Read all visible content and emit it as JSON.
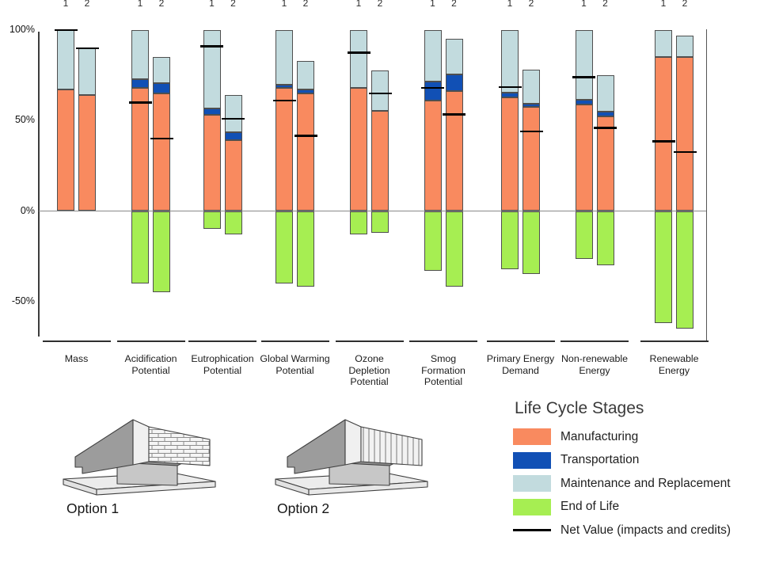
{
  "chart_data": {
    "type": "bar",
    "stacked": true,
    "unit": "%",
    "grid": false,
    "legend_position": "bottom-right",
    "ylim": [
      -70,
      100
    ],
    "y_ticks": [
      {
        "label": "100%",
        "value": 100
      },
      {
        "label": "50%",
        "value": 50
      },
      {
        "label": "0%",
        "value": 0
      },
      {
        "label": "-50%",
        "value": -50
      }
    ],
    "bar_option_labels": [
      "1",
      "2"
    ],
    "stages": [
      "Manufacturing",
      "Transportation",
      "Maintenance and Replacement",
      "End of Life"
    ],
    "net_label": "Net Value (impacts and credits)",
    "groups": [
      {
        "category": "Mass",
        "label_lines": [
          "Mass"
        ],
        "bars": [
          {
            "option": "1",
            "manufacturing_top": 67,
            "transportation_top": 67,
            "maintenance_top": 100,
            "end_of_life": 0,
            "net": 100
          },
          {
            "option": "2",
            "manufacturing_top": 64,
            "transportation_top": 64,
            "maintenance_top": 90,
            "end_of_life": 0,
            "net": 90
          }
        ]
      },
      {
        "category": "Acidification Potential",
        "label_lines": [
          "Acidification",
          "Potential"
        ],
        "bars": [
          {
            "option": "1",
            "manufacturing_top": 68,
            "transportation_top": 73,
            "maintenance_top": 100,
            "end_of_life": -40,
            "net": 60
          },
          {
            "option": "2",
            "manufacturing_top": 65,
            "transportation_top": 70.5,
            "maintenance_top": 85,
            "end_of_life": -45,
            "net": 40
          }
        ]
      },
      {
        "category": "Eutrophication Potential",
        "label_lines": [
          "Eutrophication",
          "Potential"
        ],
        "bars": [
          {
            "option": "1",
            "manufacturing_top": 53,
            "transportation_top": 56.5,
            "maintenance_top": 100,
            "end_of_life": -10,
            "net": 91
          },
          {
            "option": "2",
            "manufacturing_top": 39,
            "transportation_top": 43.5,
            "maintenance_top": 64,
            "end_of_life": -13,
            "net": 51
          }
        ]
      },
      {
        "category": "Global Warming Potential",
        "label_lines": [
          "Global Warming",
          "Potential"
        ],
        "bars": [
          {
            "option": "1",
            "manufacturing_top": 68,
            "transportation_top": 70,
            "maintenance_top": 100,
            "end_of_life": -40,
            "net": 61
          },
          {
            "option": "2",
            "manufacturing_top": 65,
            "transportation_top": 67,
            "maintenance_top": 83,
            "end_of_life": -42,
            "net": 41.5
          }
        ]
      },
      {
        "category": "Ozone Depletion Potential",
        "label_lines": [
          "Ozone",
          "Depletion",
          "Potential"
        ],
        "bars": [
          {
            "option": "1",
            "manufacturing_top": 68,
            "transportation_top": 68,
            "maintenance_top": 100,
            "end_of_life": -13,
            "net": 87.5
          },
          {
            "option": "2",
            "manufacturing_top": 55.5,
            "transportation_top": 55.5,
            "maintenance_top": 77.5,
            "end_of_life": -12,
            "net": 65
          }
        ]
      },
      {
        "category": "Smog Formation Potential",
        "label_lines": [
          "Smog",
          "Formation",
          "Potential"
        ],
        "bars": [
          {
            "option": "1",
            "manufacturing_top": 61,
            "transportation_top": 71.5,
            "maintenance_top": 100,
            "end_of_life": -33,
            "net": 68
          },
          {
            "option": "2",
            "manufacturing_top": 66.5,
            "transportation_top": 75.5,
            "maintenance_top": 95,
            "end_of_life": -42,
            "net": 53.5
          }
        ]
      },
      {
        "category": "Primary Energy Demand",
        "label_lines": [
          "Primary Energy",
          "Demand"
        ],
        "bars": [
          {
            "option": "1",
            "manufacturing_top": 63,
            "transportation_top": 65.5,
            "maintenance_top": 100,
            "end_of_life": -32,
            "net": 68.5
          },
          {
            "option": "2",
            "manufacturing_top": 57.5,
            "transportation_top": 59.5,
            "maintenance_top": 78,
            "end_of_life": -35,
            "net": 44
          }
        ]
      },
      {
        "category": "Non-renewable Energy",
        "label_lines": [
          "Non-renewable",
          "Energy"
        ],
        "bars": [
          {
            "option": "1",
            "manufacturing_top": 59,
            "transportation_top": 61.5,
            "maintenance_top": 100,
            "end_of_life": -26.5,
            "net": 74
          },
          {
            "option": "2",
            "manufacturing_top": 52.5,
            "transportation_top": 55,
            "maintenance_top": 75,
            "end_of_life": -30,
            "net": 46
          }
        ]
      },
      {
        "category": "Renewable Energy",
        "label_lines": [
          "Renewable",
          "Energy"
        ],
        "bars": [
          {
            "option": "1",
            "manufacturing_top": 85,
            "transportation_top": 85,
            "maintenance_top": 100,
            "end_of_life": -62,
            "net": 38.5
          },
          {
            "option": "2",
            "manufacturing_top": 85,
            "transportation_top": 85,
            "maintenance_top": 97,
            "end_of_life": -65,
            "net": 32.5
          }
        ]
      }
    ]
  },
  "legend": {
    "title": "Life Cycle Stages",
    "items": [
      {
        "label": "Manufacturing",
        "swatch": "manufacturing"
      },
      {
        "label": "Transportation",
        "swatch": "transportation"
      },
      {
        "label": "Maintenance and Replacement",
        "swatch": "maintenance"
      },
      {
        "label": "End of Life",
        "swatch": "end_of_life"
      },
      {
        "label": "Net Value (impacts and credits)",
        "swatch": "net_line"
      }
    ]
  },
  "options_panel": {
    "options": [
      {
        "label": "Option 1",
        "facade": "brick"
      },
      {
        "label": "Option 2",
        "facade": "vertical-panels"
      }
    ]
  },
  "colors": {
    "manufacturing": "#F98A5F",
    "transportation": "#1150B5",
    "maintenance": "#C2DBDE",
    "end_of_life": "#A6EE52",
    "net_line": "#000000",
    "axis": "#3C3C3C",
    "zero_line": "#8A8A8A"
  }
}
